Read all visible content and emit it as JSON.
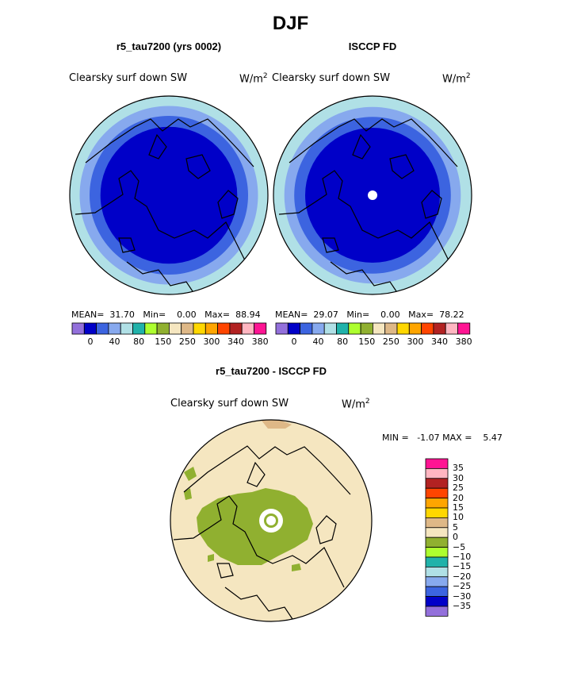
{
  "chart_data": [
    {
      "type": "heatmap",
      "projection": "polar-stereographic",
      "title": "r5_tau7200 (yrs 0002)",
      "variable": "Clearsky surf down SW",
      "units": "W/m",
      "units_sup": "2",
      "stats": {
        "mean_label": "MEAN=",
        "mean": "31.70",
        "min_label": "Min=",
        "min": "0.00",
        "max_label": "Max=",
        "max": "88.94"
      },
      "zones": [
        {
          "outer_r_frac": 1.0,
          "color": "#b0e0e6"
        },
        {
          "outer_r_frac": 0.9,
          "color": "#87a9ee"
        },
        {
          "outer_r_frac": 0.8,
          "color": "#3c64e0"
        },
        {
          "outer_r_frac": 0.69,
          "color": "#0000c8"
        }
      ],
      "colorbar": {
        "colors": [
          "#9370db",
          "#0000c8",
          "#3c64e0",
          "#87a9ee",
          "#b0e0e6",
          "#20b2aa",
          "#adff2f",
          "#90b030",
          "#f5e6c0",
          "#deb887",
          "#ffd700",
          "#ffa500",
          "#ff4500",
          "#b22222",
          "#ffb6c1",
          "#ff1493"
        ],
        "tick_labels": [
          "0",
          "40",
          "80",
          "150",
          "250",
          "300",
          "340",
          "380"
        ]
      }
    },
    {
      "type": "heatmap",
      "projection": "polar-stereographic",
      "title": "ISCCP FD",
      "variable": "Clearsky surf down SW",
      "units": "W/m",
      "units_sup": "2",
      "stats": {
        "mean_label": "MEAN=",
        "mean": "29.07",
        "min_label": "Min=",
        "min": "0.00",
        "max_label": "Max=",
        "max": "78.22"
      },
      "zones": [
        {
          "outer_r_frac": 1.0,
          "color": "#b0e0e6"
        },
        {
          "outer_r_frac": 0.89,
          "color": "#87a9ee"
        },
        {
          "outer_r_frac": 0.79,
          "color": "#3c64e0"
        },
        {
          "outer_r_frac": 0.68,
          "color": "#0000c8"
        }
      ],
      "colorbar": {
        "colors": [
          "#9370db",
          "#0000c8",
          "#3c64e0",
          "#87a9ee",
          "#b0e0e6",
          "#20b2aa",
          "#adff2f",
          "#90b030",
          "#f5e6c0",
          "#deb887",
          "#ffd700",
          "#ffa500",
          "#ff4500",
          "#b22222",
          "#ffb6c1",
          "#ff1493"
        ],
        "tick_labels": [
          "0",
          "40",
          "80",
          "150",
          "250",
          "300",
          "340",
          "380"
        ]
      }
    },
    {
      "type": "heatmap",
      "projection": "polar-stereographic",
      "title": "r5_tau7200 - ISCCP FD",
      "variable": "Clearsky surf down SW",
      "units": "W/m",
      "units_sup": "2",
      "stats": {
        "min_label": "MIN =",
        "min": "-1.07",
        "max_label": "MAX =",
        "max": "5.47"
      },
      "background_color": "#f5e6c0",
      "anomaly_color": "#90b030",
      "colorbar": {
        "colors_top_to_bottom": [
          "#ff1493",
          "#ffb6c1",
          "#b22222",
          "#ff4500",
          "#ffa500",
          "#ffd700",
          "#deb887",
          "#f5e6c0",
          "#90b030",
          "#adff2f",
          "#20b2aa",
          "#b0e0e6",
          "#87a9ee",
          "#3c64e0",
          "#0000c8",
          "#9370db"
        ],
        "tick_labels_top_to_bottom": [
          "35",
          "30",
          "25",
          "20",
          "15",
          "10",
          "5",
          "0",
          "−5",
          "−10",
          "−15",
          "−20",
          "−25",
          "−30",
          "−35"
        ]
      }
    }
  ],
  "page": {
    "title": "DJF"
  }
}
